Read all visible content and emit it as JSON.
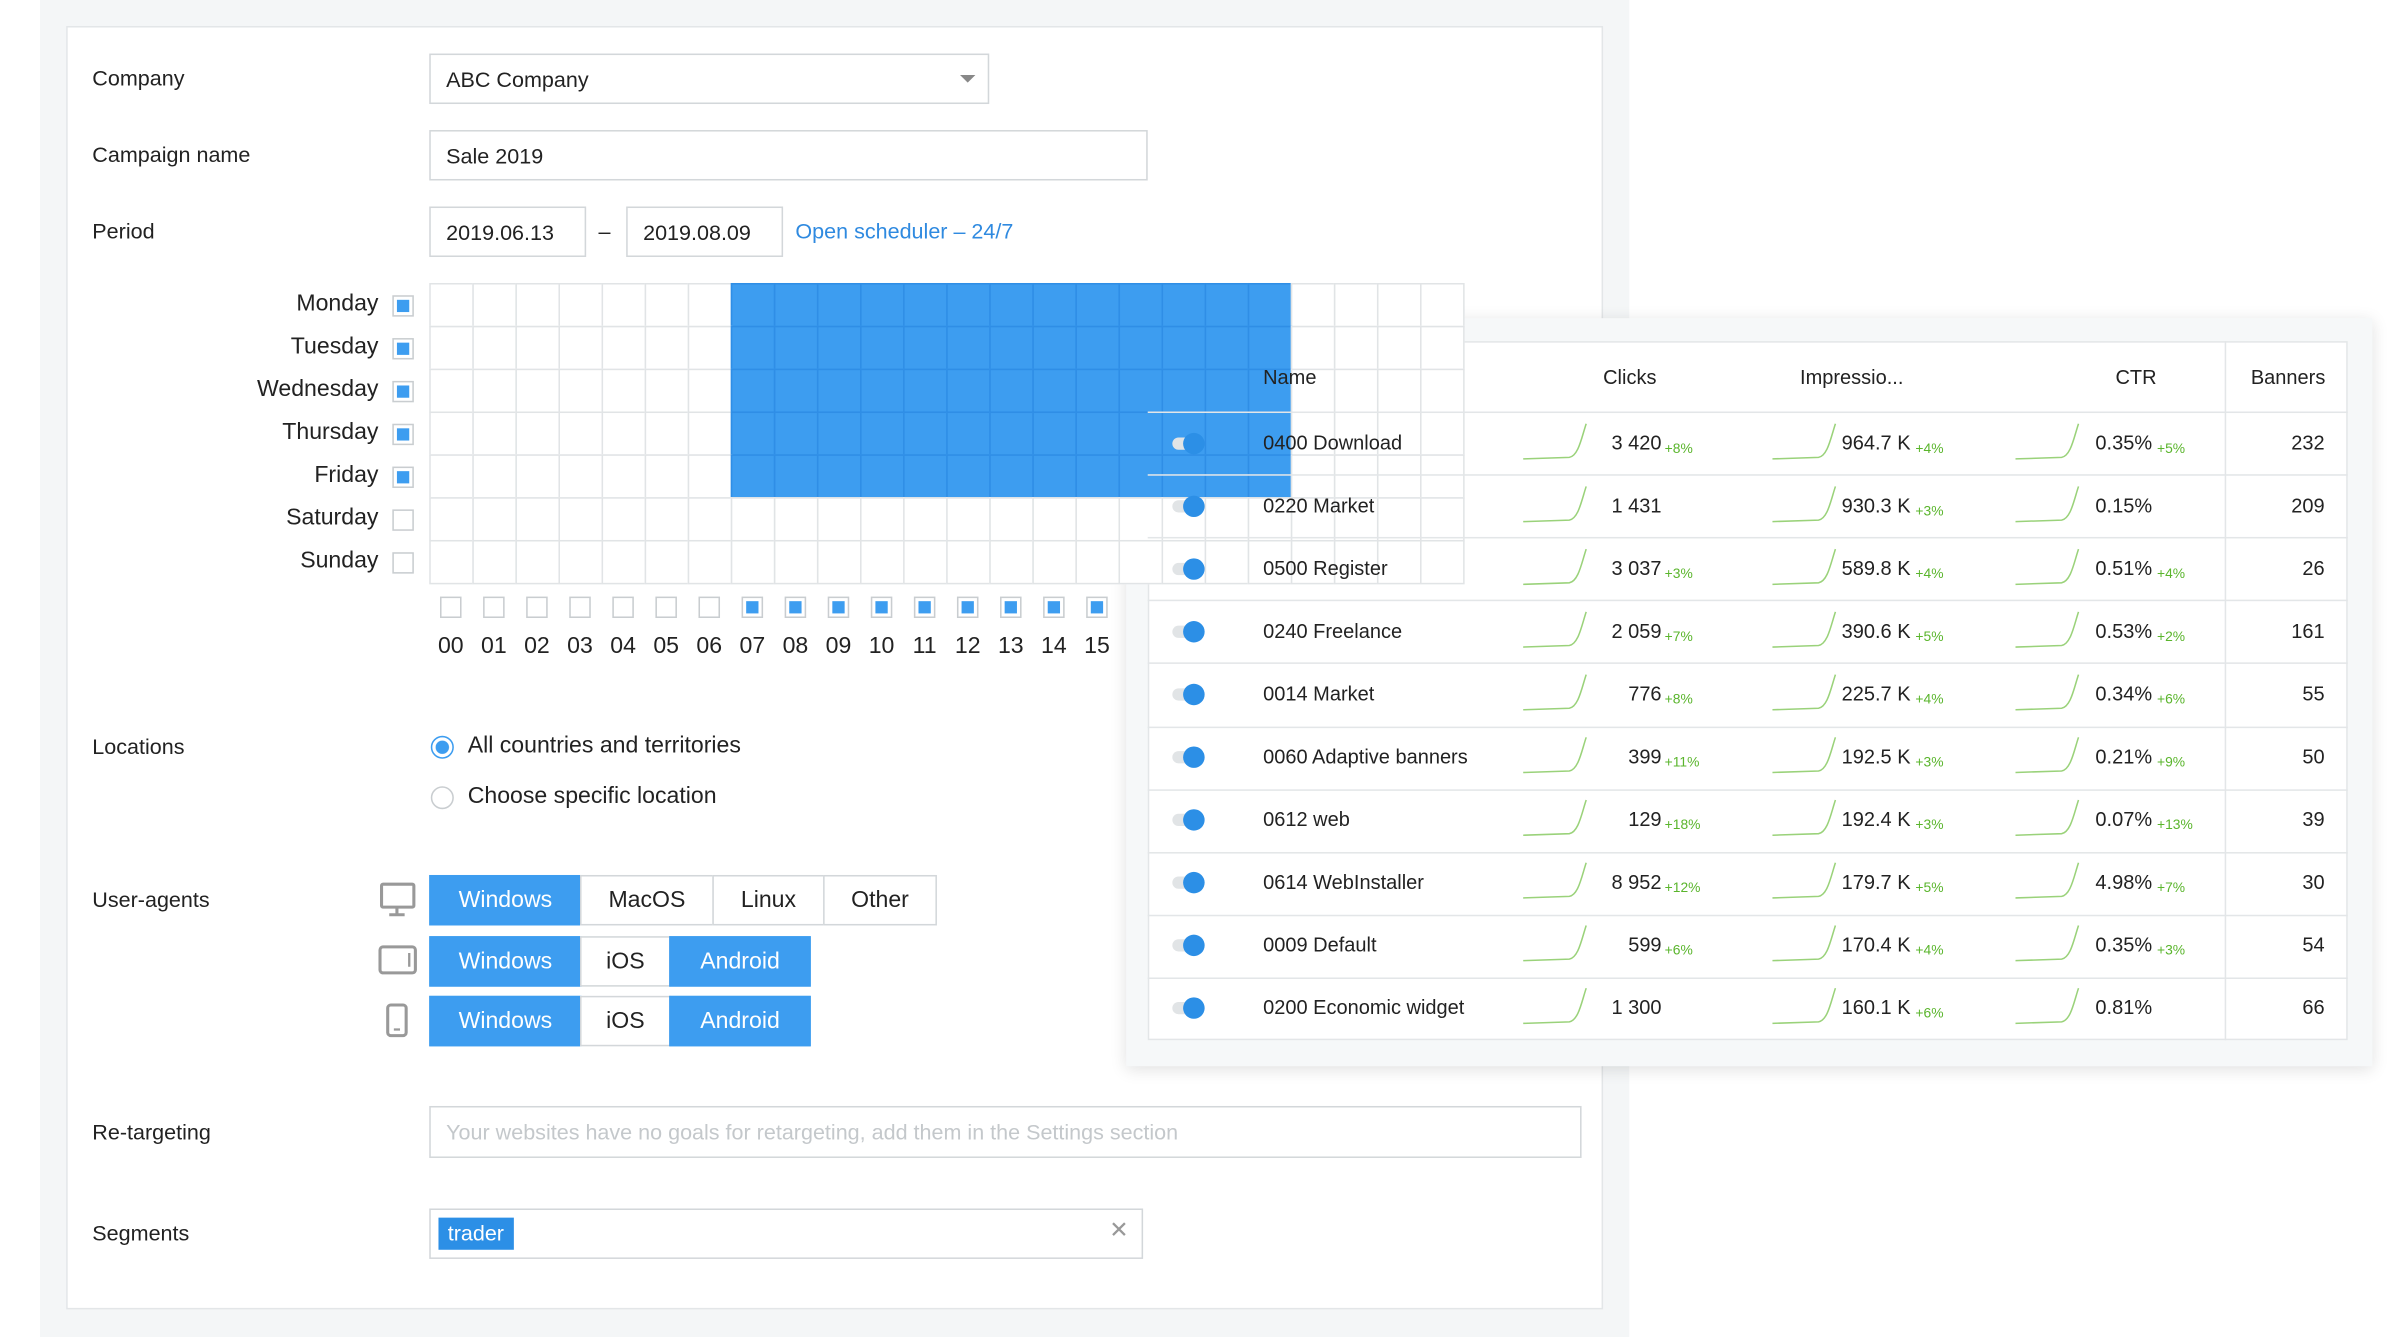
{
  "form": {
    "company": {
      "label": "Company",
      "value": "ABC Company"
    },
    "campaign_name": {
      "label": "Campaign name",
      "value": "Sale 2019"
    },
    "period": {
      "label": "Period",
      "start": "2019.06.13",
      "separator": "–",
      "end": "2019.08.09",
      "scheduler_link": "Open scheduler – 24/7"
    },
    "schedule": {
      "days": [
        {
          "name": "Monday",
          "checked": true
        },
        {
          "name": "Tuesday",
          "checked": true
        },
        {
          "name": "Wednesday",
          "checked": true
        },
        {
          "name": "Thursday",
          "checked": true
        },
        {
          "name": "Friday",
          "checked": true
        },
        {
          "name": "Saturday",
          "checked": false
        },
        {
          "name": "Sunday",
          "checked": false
        }
      ],
      "hours": [
        {
          "label": "00",
          "checked": false
        },
        {
          "label": "01",
          "checked": false
        },
        {
          "label": "02",
          "checked": false
        },
        {
          "label": "03",
          "checked": false
        },
        {
          "label": "04",
          "checked": false
        },
        {
          "label": "05",
          "checked": false
        },
        {
          "label": "06",
          "checked": false
        },
        {
          "label": "07",
          "checked": true
        },
        {
          "label": "08",
          "checked": true
        },
        {
          "label": "09",
          "checked": true
        },
        {
          "label": "10",
          "checked": true
        },
        {
          "label": "11",
          "checked": true
        },
        {
          "label": "12",
          "checked": true
        },
        {
          "label": "13",
          "checked": true
        },
        {
          "label": "14",
          "checked": true
        },
        {
          "label": "15",
          "checked": true
        }
      ],
      "hour_columns": 24,
      "selected_from": 7,
      "selected_to": 20
    },
    "locations": {
      "label": "Locations",
      "options": [
        {
          "label": "All countries and territories",
          "selected": true
        },
        {
          "label": "Choose specific location",
          "selected": false
        }
      ]
    },
    "user_agents": {
      "label": "User-agents",
      "rows": [
        {
          "device": "desktop",
          "options": [
            {
              "label": "Windows",
              "selected": true
            },
            {
              "label": "MacOS",
              "selected": false
            },
            {
              "label": "Linux",
              "selected": false
            },
            {
              "label": "Other",
              "selected": false
            }
          ]
        },
        {
          "device": "tablet",
          "options": [
            {
              "label": "Windows",
              "selected": true
            },
            {
              "label": "iOS",
              "selected": false
            },
            {
              "label": "Android",
              "selected": true
            }
          ]
        },
        {
          "device": "phone",
          "options": [
            {
              "label": "Windows",
              "selected": true
            },
            {
              "label": "iOS",
              "selected": false
            },
            {
              "label": "Android",
              "selected": true
            }
          ]
        }
      ]
    },
    "retargeting": {
      "label": "Re-targeting",
      "placeholder": "Your websites have no goals for retargeting, add them in the Settings section"
    },
    "segments": {
      "label": "Segments",
      "tags": [
        "trader"
      ]
    }
  },
  "table": {
    "columns": [
      "Name",
      "Clicks",
      "Impressio...",
      "CTR",
      "Banners"
    ],
    "rows": [
      {
        "name": "0400 Download",
        "clicks": "3 420",
        "clicks_change": "+8%",
        "impressions": "964.7 K",
        "impressions_change": "+4%",
        "ctr": "0.35%",
        "ctr_change": "+5%",
        "banners": "232"
      },
      {
        "name": "0220 Market",
        "clicks": "1 431",
        "impressions": "930.3 K",
        "impressions_change": "+3%",
        "ctr": "0.15%",
        "banners": "209"
      },
      {
        "name": "0500 Register",
        "clicks": "3 037",
        "clicks_change": "+3%",
        "impressions": "589.8 K",
        "impressions_change": "+4%",
        "ctr": "0.51%",
        "ctr_change": "+4%",
        "banners": "26"
      },
      {
        "name": "0240 Freelance",
        "clicks": "2 059",
        "clicks_change": "+7%",
        "impressions": "390.6 K",
        "impressions_change": "+5%",
        "ctr": "0.53%",
        "ctr_change": "+2%",
        "banners": "161"
      },
      {
        "name": "0014 Market",
        "clicks": "776",
        "clicks_change": "+8%",
        "impressions": "225.7 K",
        "impressions_change": "+4%",
        "ctr": "0.34%",
        "ctr_change": "+6%",
        "banners": "55"
      },
      {
        "name": "0060 Adaptive banners",
        "clicks": "399",
        "clicks_change": "+11%",
        "impressions": "192.5 K",
        "impressions_change": "+3%",
        "ctr": "0.21%",
        "ctr_change": "+9%",
        "banners": "50"
      },
      {
        "name": "0612 web",
        "clicks": "129",
        "clicks_change": "+18%",
        "impressions": "192.4 K",
        "impressions_change": "+3%",
        "ctr": "0.07%",
        "ctr_change": "+13%",
        "banners": "39"
      },
      {
        "name": "0614 WebInstaller",
        "clicks": "8 952",
        "clicks_change": "+12%",
        "impressions": "179.7 K",
        "impressions_change": "+5%",
        "ctr": "4.98%",
        "ctr_change": "+7%",
        "banners": "30"
      },
      {
        "name": "0009 Default",
        "clicks": "599",
        "clicks_change": "+6%",
        "impressions": "170.4 K",
        "impressions_change": "+4%",
        "ctr": "0.35%",
        "ctr_change": "+3%",
        "banners": "54"
      },
      {
        "name": "0200 Economic widget",
        "clicks": "1 300",
        "impressions": "160.1 K",
        "impressions_change": "+6%",
        "ctr": "0.81%",
        "banners": "66"
      }
    ]
  }
}
